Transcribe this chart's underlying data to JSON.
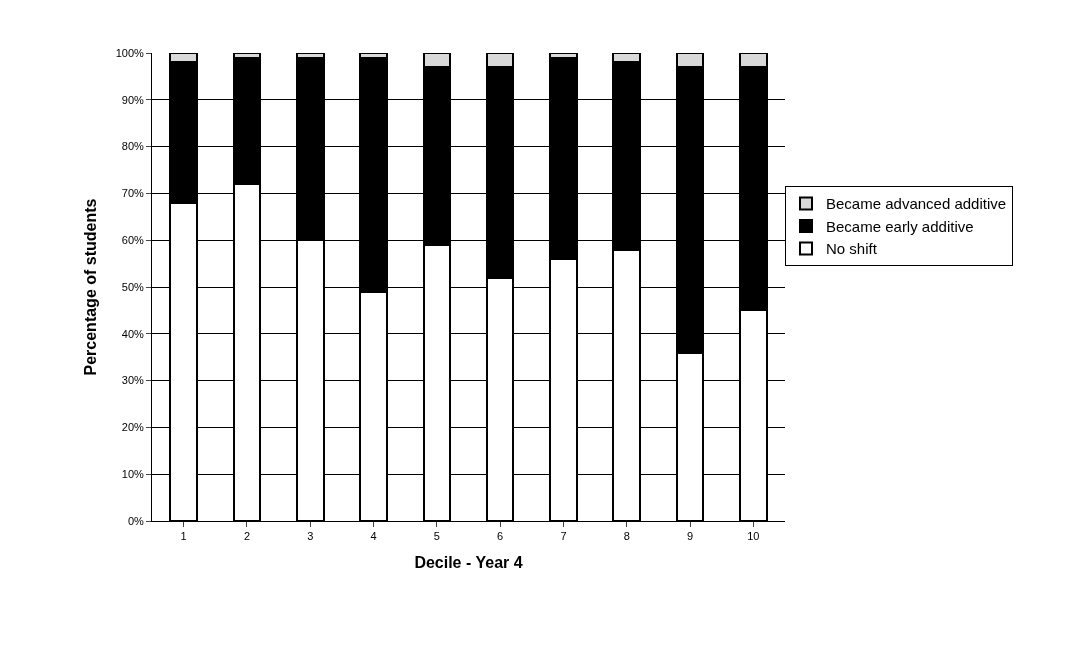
{
  "chart_data": {
    "type": "bar",
    "stacked": true,
    "xlabel": "Decile - Year 4",
    "ylabel": "Percentage of students",
    "categories": [
      "1",
      "2",
      "3",
      "4",
      "5",
      "6",
      "7",
      "8",
      "9",
      "10"
    ],
    "series": [
      {
        "name": "No shift",
        "color": "#ffffff",
        "values": [
          68,
          72,
          60,
          49,
          59,
          52,
          56,
          58,
          36,
          45
        ]
      },
      {
        "name": "Became early additive",
        "color": "#000000",
        "values": [
          30,
          27,
          39,
          50,
          38,
          45,
          43,
          40,
          61,
          52
        ]
      },
      {
        "name": "Became advanced additive",
        "color": "#d9d9d9",
        "values": [
          2,
          1,
          1,
          1,
          3,
          3,
          1,
          2,
          3,
          3
        ]
      }
    ],
    "ylim": [
      0,
      100
    ],
    "yticks": [
      {
        "value": 0,
        "label": "0%"
      },
      {
        "value": 10,
        "label": "10%"
      },
      {
        "value": 20,
        "label": "20%"
      },
      {
        "value": 30,
        "label": "30%"
      },
      {
        "value": 40,
        "label": "40%"
      },
      {
        "value": 50,
        "label": "50%"
      },
      {
        "value": 60,
        "label": "60%"
      },
      {
        "value": 70,
        "label": "70%"
      },
      {
        "value": 80,
        "label": "80%"
      },
      {
        "value": 90,
        "label": "90%"
      },
      {
        "value": 100,
        "label": "100%"
      }
    ],
    "grid": "y",
    "legend": "right"
  }
}
